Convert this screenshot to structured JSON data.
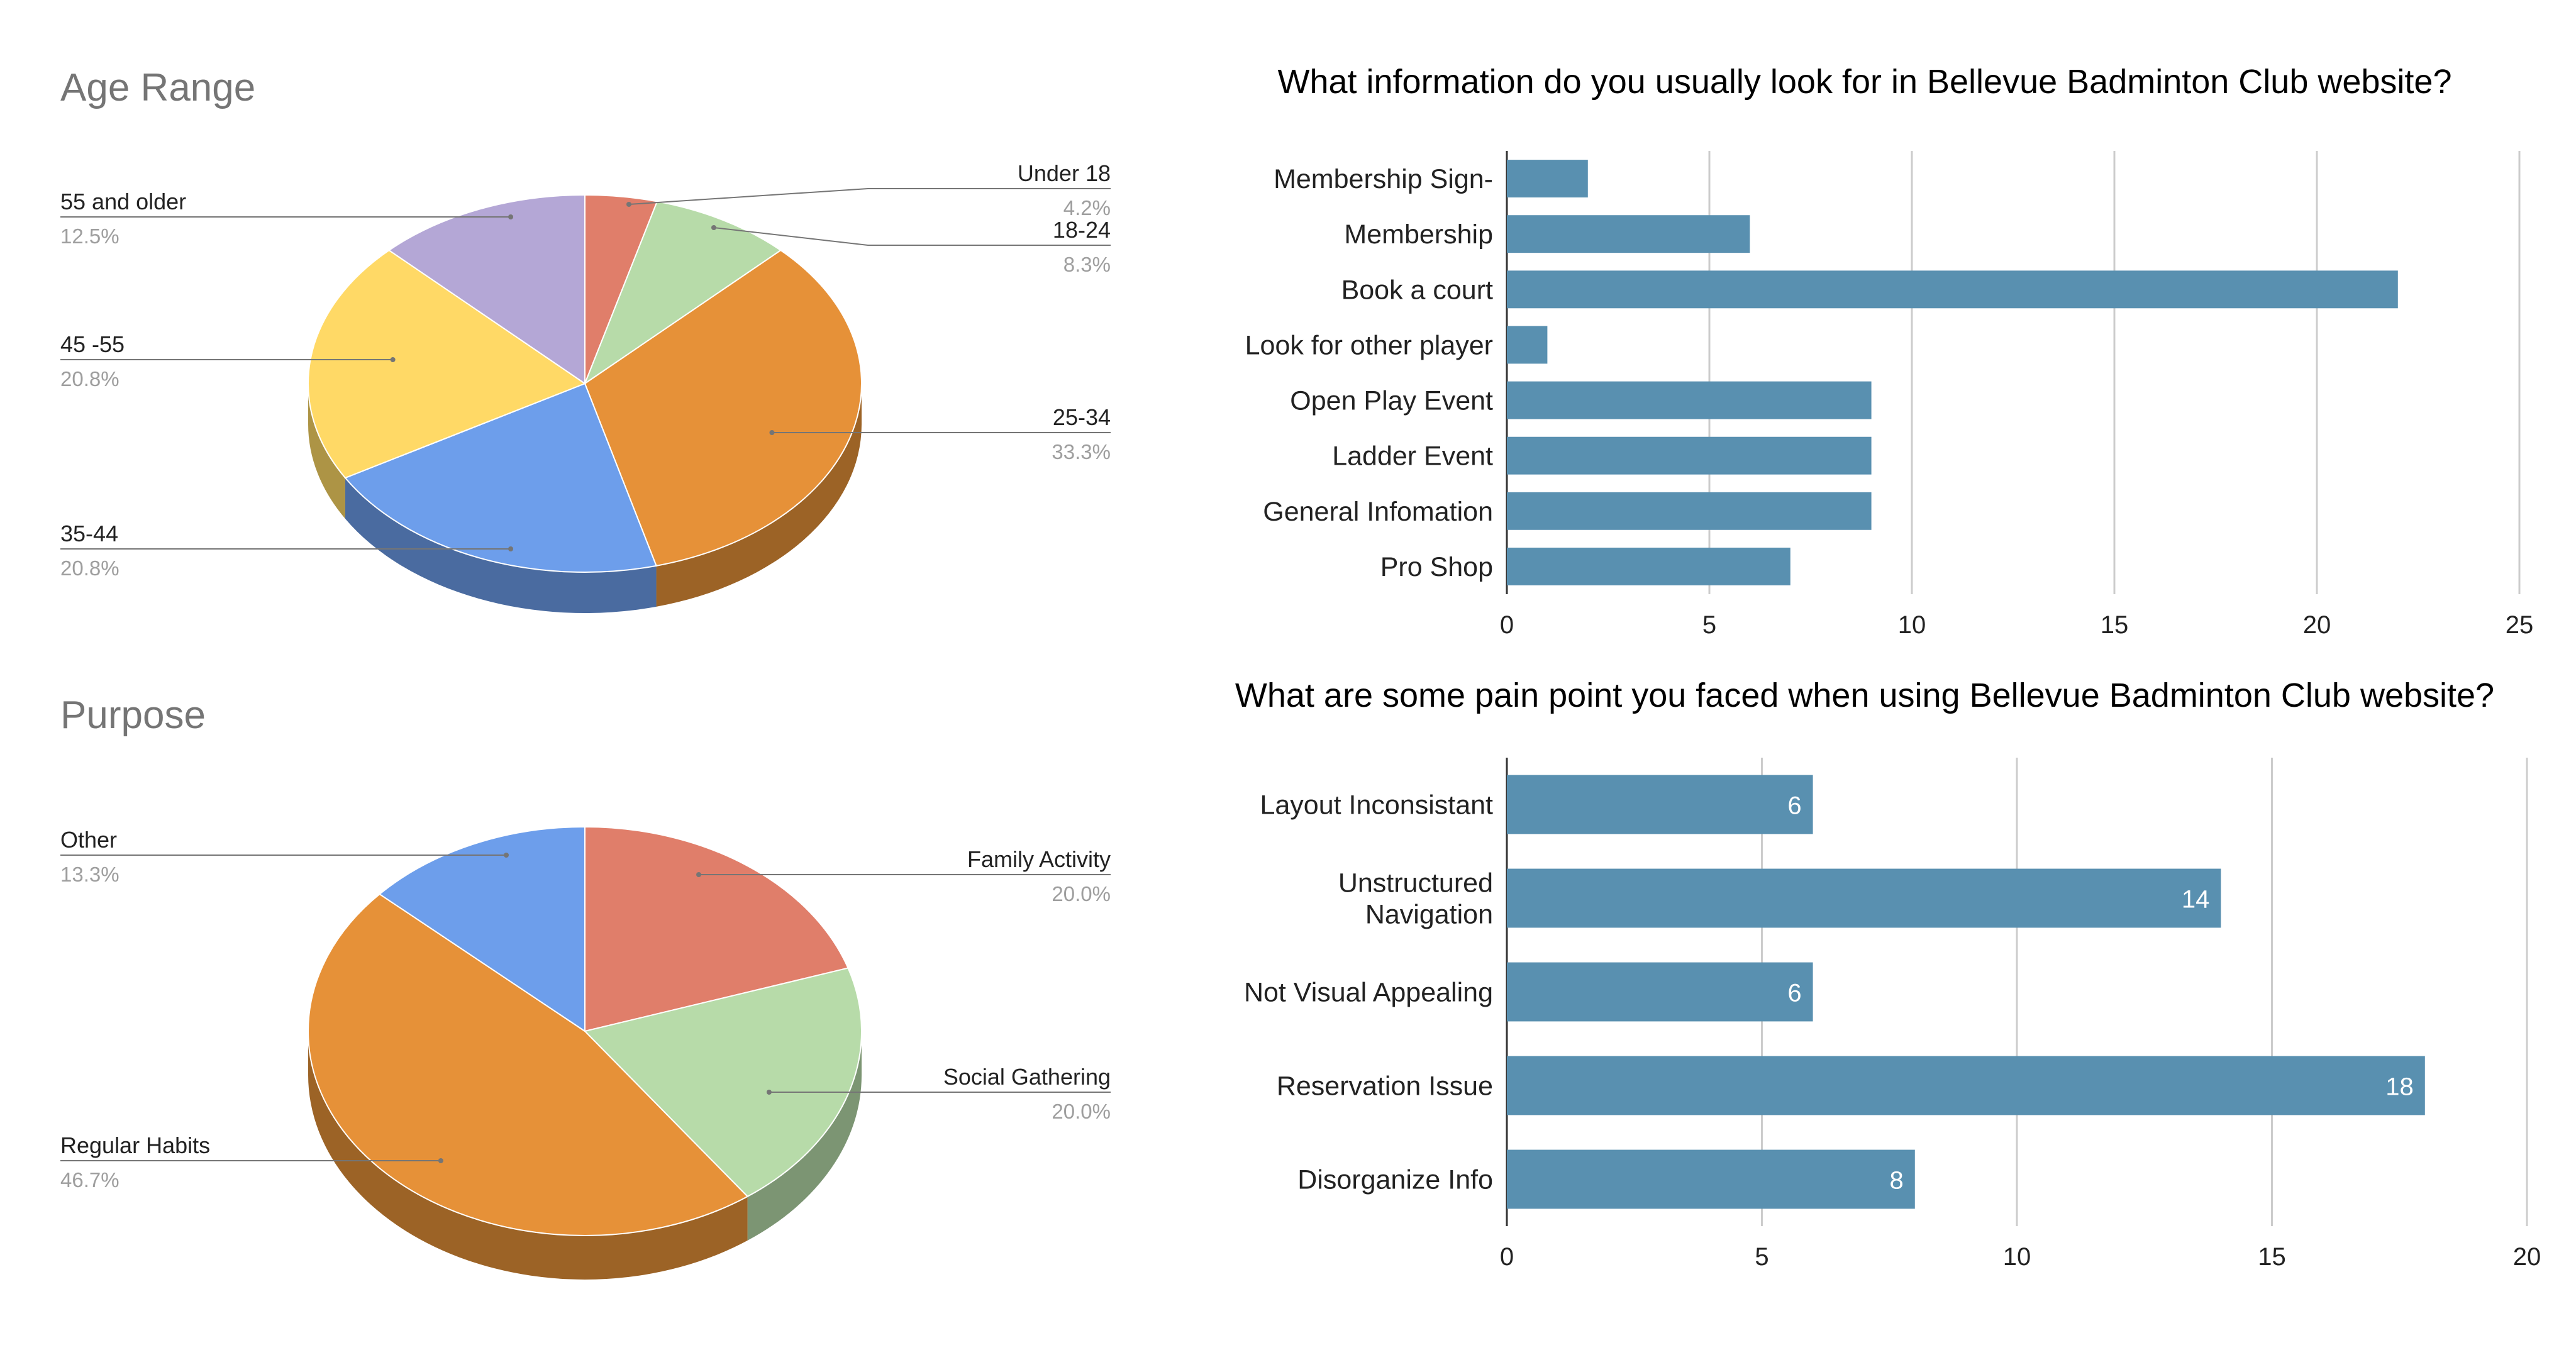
{
  "colors": {
    "bar": "#5990b0",
    "grid": "#cccccc",
    "axis": "#333333",
    "leader": "#757575"
  },
  "chart_data": [
    {
      "type": "pie",
      "title": "Age Range",
      "slices": [
        {
          "label": "Under 18",
          "value": 4.2,
          "pct_label": "4.2%",
          "color": "#e07e6a"
        },
        {
          "label": "18-24",
          "value": 8.3,
          "pct_label": "8.3%",
          "color": "#b7dba9"
        },
        {
          "label": "25-34",
          "value": 33.3,
          "pct_label": "33.3%",
          "color": "#e69138"
        },
        {
          "label": "35-44",
          "value": 20.8,
          "pct_label": "20.8%",
          "color": "#6d9eeb"
        },
        {
          "label": "45 -55",
          "value": 20.8,
          "pct_label": "20.8%",
          "color": "#ffd966"
        },
        {
          "label": "55 and older",
          "value": 12.5,
          "pct_label": "12.5%",
          "color": "#b4a7d6"
        }
      ]
    },
    {
      "type": "pie",
      "title": "Purpose",
      "slices": [
        {
          "label": "Family Activity",
          "value": 20.0,
          "pct_label": "20.0%",
          "color": "#e07e6a"
        },
        {
          "label": "Social Gathering",
          "value": 20.0,
          "pct_label": "20.0%",
          "color": "#b7dba9"
        },
        {
          "label": "Regular Habits",
          "value": 46.7,
          "pct_label": "46.7%",
          "color": "#e69138"
        },
        {
          "label": "Other",
          "value": 13.3,
          "pct_label": "13.3%",
          "color": "#6d9eeb"
        }
      ]
    },
    {
      "type": "bar",
      "orientation": "horizontal",
      "title": "What information do you usually look for in Bellevue Badminton Club website?",
      "categories": [
        "Membership Sign-",
        "Membership",
        "Book a court",
        "Look for other player",
        "Open Play Event",
        "Ladder Event",
        "General Infomation",
        "Pro Shop"
      ],
      "values": [
        2,
        6,
        22,
        1,
        9,
        9,
        9,
        7
      ],
      "xlim": [
        0,
        25
      ],
      "xticks": [
        0,
        5,
        10,
        15,
        20,
        25
      ],
      "xtick_labels": [
        "0",
        "5",
        "10",
        "15",
        "20",
        "25"
      ],
      "grid": true,
      "data_labels": false
    },
    {
      "type": "bar",
      "orientation": "horizontal",
      "title": "What are some pain point you faced when using Bellevue Badminton Club website?",
      "categories": [
        [
          "Layout Inconsistant"
        ],
        [
          "Unstructured",
          "Navigation"
        ],
        [
          "Not Visual Appealing"
        ],
        [
          "Reservation Issue"
        ],
        [
          "Disorganize Info"
        ]
      ],
      "values": [
        6,
        14,
        6,
        18,
        8
      ],
      "value_labels": [
        "6",
        "14",
        "6",
        "18",
        "8"
      ],
      "xlim": [
        0,
        20
      ],
      "xticks": [
        0,
        5,
        10,
        15,
        20
      ],
      "xtick_labels": [
        "0",
        "5",
        "10",
        "15",
        "20"
      ],
      "grid": true,
      "data_labels": true
    }
  ]
}
